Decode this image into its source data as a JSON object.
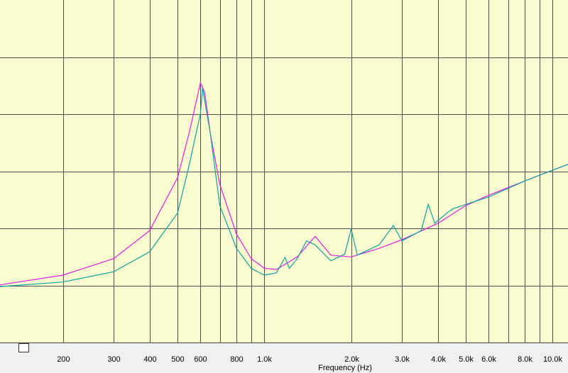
{
  "chart_data": {
    "type": "line",
    "x_scale": "log",
    "x_label": "Frequency (Hz)",
    "xlim": [
      121,
      11300
    ],
    "ylim": [
      0,
      6
    ],
    "xticks": [
      200,
      300,
      400,
      500,
      600,
      800,
      {
        "value": 1000,
        "label": "1.0k"
      },
      {
        "value": 2000,
        "label": "2.0k"
      },
      {
        "value": 3000,
        "label": "3.0k"
      },
      {
        "value": 4000,
        "label": "4.0k"
      },
      {
        "value": 5000,
        "label": "5.0k"
      },
      {
        "value": 6000,
        "label": "6.0k"
      },
      {
        "value": 8000,
        "label": "8.0k"
      },
      {
        "value": 10000,
        "label": "10.0k"
      }
    ],
    "x_minor_gridlines": [
      700,
      900,
      7000,
      9000
    ],
    "y_gridlines": [
      1,
      2,
      3,
      4,
      5
    ],
    "grid": true,
    "background": "#fbfbd0",
    "series": [
      {
        "name": "magenta",
        "color": "#e020e0",
        "x": [
          121,
          200,
          300,
          400,
          500,
          550,
          600,
          620,
          650,
          700,
          800,
          900,
          1000,
          1100,
          1300,
          1500,
          1700,
          2000,
          2500,
          3000,
          4000,
          5000,
          6000,
          8000,
          10000,
          11300
        ],
        "values": [
          1.01,
          1.18,
          1.47,
          1.96,
          2.89,
          3.7,
          4.55,
          4.39,
          3.64,
          2.77,
          1.9,
          1.47,
          1.3,
          1.28,
          1.5,
          1.86,
          1.53,
          1.5,
          1.65,
          1.8,
          2.09,
          2.4,
          2.58,
          2.83,
          3.02,
          3.12
        ]
      },
      {
        "name": "teal",
        "color": "#10a0a0",
        "x": [
          121,
          200,
          300,
          400,
          500,
          550,
          600,
          610,
          650,
          700,
          800,
          900,
          1000,
          1100,
          1180,
          1220,
          1300,
          1400,
          1500,
          1700,
          1900,
          2000,
          2100,
          2500,
          2800,
          3000,
          3500,
          3700,
          3900,
          4300,
          4500,
          5000,
          6000,
          8000,
          10000,
          11300
        ],
        "values": [
          0.98,
          1.06,
          1.24,
          1.59,
          2.27,
          3.14,
          4.01,
          4.46,
          3.64,
          2.4,
          1.65,
          1.3,
          1.18,
          1.22,
          1.49,
          1.3,
          1.47,
          1.78,
          1.71,
          1.43,
          1.55,
          1.99,
          1.53,
          1.71,
          2.05,
          1.78,
          1.96,
          2.42,
          2.09,
          2.27,
          2.34,
          2.42,
          2.55,
          2.83,
          3.02,
          3.12
        ]
      }
    ]
  }
}
